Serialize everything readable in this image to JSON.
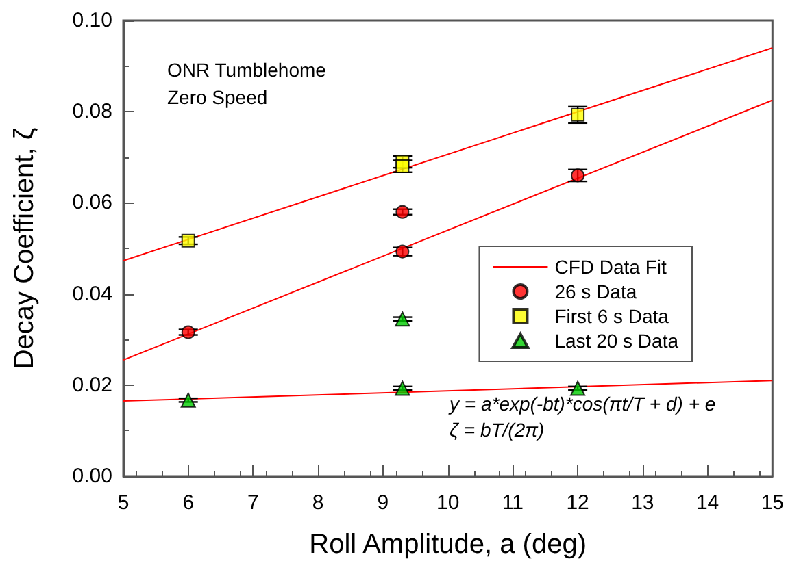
{
  "chart_data": {
    "type": "scatter",
    "xlabel": "Roll Amplitude, a (deg)",
    "ylabel": "Decay Coefficient, ζ",
    "xlim": [
      5,
      15
    ],
    "xticks": [
      5,
      6,
      7,
      8,
      9,
      10,
      11,
      12,
      13,
      14,
      15
    ],
    "ylim": [
      0,
      0.1
    ],
    "yticks": [
      {
        "value": 0,
        "label": "0.00"
      },
      {
        "value": 0.02,
        "label": "0.02"
      },
      {
        "value": 0.04,
        "label": "0.04"
      },
      {
        "value": 0.06,
        "label": "0.06"
      },
      {
        "value": 0.08,
        "label": "0.08"
      },
      {
        "value": 0.1,
        "label": "0.10"
      }
    ],
    "grid": false,
    "legend": "right",
    "annotations": [
      "ONR Tumblehome",
      "Zero Speed",
      "y = a*exp(-bt)*cos(πt/T + d) + e",
      "ζ = bT/(2π)"
    ],
    "series": [
      {
        "type": "line",
        "name": "CFD Data Fit",
        "color": "#ff0000",
        "x": [
          5,
          15
        ],
        "values": [
          0.0473,
          0.094
        ],
        "marker": "none"
      },
      {
        "type": "line",
        "color": "#ff0000",
        "x": [
          5,
          15
        ],
        "values": [
          0.0255,
          0.0825
        ],
        "marker": "none"
      },
      {
        "type": "line",
        "color": "#ff0000",
        "x": [
          5,
          15
        ],
        "values": [
          0.0165,
          0.021
        ],
        "marker": "none"
      },
      {
        "name": "26 s Data",
        "color": "#ff0000",
        "marker": "circle",
        "x": [
          6,
          9.3,
          9.3,
          12
        ],
        "values": [
          0.0316,
          0.058,
          0.0493,
          0.066
        ],
        "errors": [
          0.0006,
          0.0006,
          0.0009,
          0.0013
        ]
      },
      {
        "name": "First 6 s Data",
        "color": "#ffff00",
        "marker": "square",
        "x": [
          6,
          9.3,
          9.3,
          12
        ],
        "values": [
          0.0517,
          0.069,
          0.068,
          0.0793
        ],
        "errors": [
          0.0008,
          0.0013,
          0.0013,
          0.0018
        ]
      },
      {
        "name": "Last 20 s Data",
        "color": "#00cc00",
        "marker": "triangle",
        "x": [
          6,
          9.3,
          9.3,
          12
        ],
        "values": [
          0.0167,
          0.0345,
          0.0193,
          0.0193
        ],
        "errors": [
          0.0004,
          0.0004,
          0.0004,
          0.0004
        ]
      }
    ]
  }
}
